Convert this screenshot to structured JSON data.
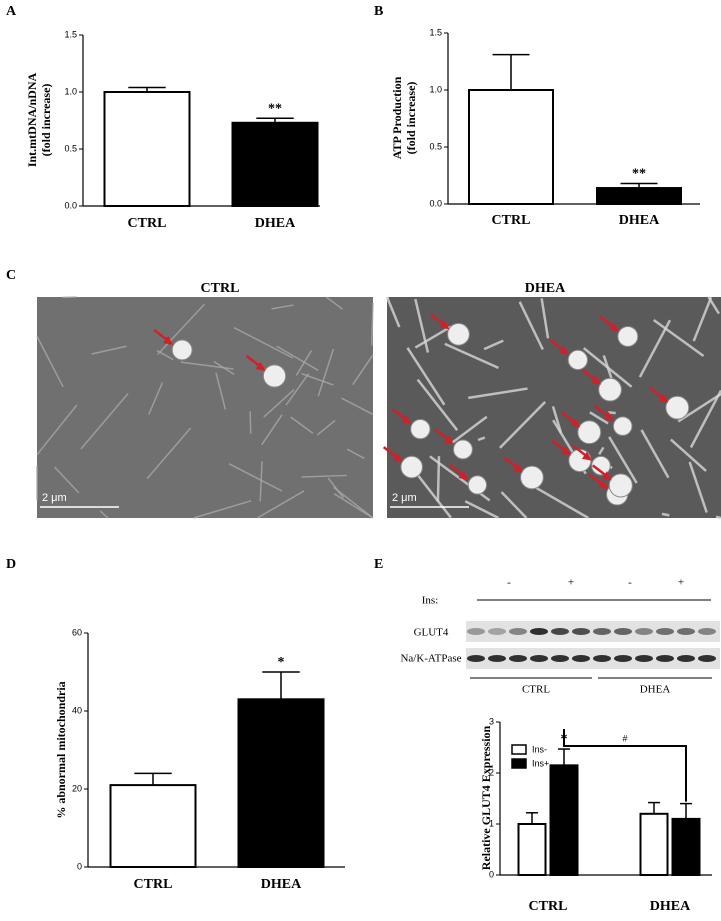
{
  "panel_labels": [
    "A",
    "B",
    "C",
    "D",
    "E"
  ],
  "chart_data": [
    {
      "type": "bar",
      "ylabel": [
        "Int.mtDNA/nDNA",
        "(fold increase)"
      ],
      "categories": [
        "CTRL",
        "DHEA"
      ],
      "values": [
        1.0,
        0.73
      ],
      "errors": [
        0.04,
        0.04
      ],
      "colors": [
        "#ffffff",
        "#000000"
      ],
      "significance": [
        null,
        "**"
      ],
      "ylim": [
        0,
        1.5
      ],
      "yticks": [
        {
          "value": 0,
          "label": "0.0"
        },
        {
          "value": 0.5,
          "label": "0.5"
        },
        {
          "value": 1,
          "label": "1.0"
        },
        {
          "value": 1.5,
          "label": "1.5"
        }
      ]
    },
    {
      "type": "bar",
      "ylabel": [
        "ATP Production",
        "(fold increase)"
      ],
      "categories": [
        "CTRL",
        "DHEA"
      ],
      "values": [
        1.0,
        0.14
      ],
      "errors": [
        0.31,
        0.04
      ],
      "colors": [
        "#ffffff",
        "#000000"
      ],
      "significance": [
        null,
        "**"
      ],
      "ylim": [
        0,
        1.5
      ],
      "yticks": [
        {
          "value": 0,
          "label": "0.0"
        },
        {
          "value": 0.5,
          "label": "0.5"
        },
        {
          "value": 1,
          "label": "1.0"
        },
        {
          "value": 1.5,
          "label": "1.5"
        }
      ]
    },
    {
      "type": "bar",
      "ylabel": [
        "% abnormal mitochondria"
      ],
      "categories": [
        "CTRL",
        "DHEA"
      ],
      "values": [
        21,
        43
      ],
      "errors": [
        3,
        7
      ],
      "colors": [
        "#ffffff",
        "#000000"
      ],
      "significance": [
        null,
        "*"
      ],
      "ylim": [
        0,
        60
      ],
      "yticks": [
        0,
        20,
        40,
        60
      ]
    },
    {
      "type": "grouped_bar",
      "ylabel": [
        "Relative GLUT4 Expression"
      ],
      "categories": [
        "CTRL",
        "DHEA"
      ],
      "series": [
        {
          "name": "Ins-",
          "color": "#ffffff",
          "values": [
            1.0,
            1.2
          ],
          "errors": [
            0.22,
            0.22
          ],
          "significance": [
            null,
            null
          ]
        },
        {
          "name": "Ins+",
          "color": "#000000",
          "values": [
            2.15,
            1.1
          ],
          "errors": [
            0.32,
            0.3
          ],
          "significance": [
            "*",
            null
          ]
        }
      ],
      "comparison_label": "#",
      "ylim": [
        0,
        3
      ],
      "yticks": [
        0,
        1,
        2,
        3
      ],
      "legend": "upper left"
    }
  ],
  "micrographs": [
    {
      "title": "CTRL",
      "scale_bar": "2 μm"
    },
    {
      "title": "DHEA",
      "scale_bar": "2 μm"
    }
  ],
  "blot": {
    "treatment_label": "Ins:",
    "treatments": [
      "-",
      "+",
      "-",
      "+"
    ],
    "rows": [
      "GLUT4",
      "Na/K-ATPase"
    ],
    "groups": [
      "CTRL",
      "DHEA"
    ]
  }
}
